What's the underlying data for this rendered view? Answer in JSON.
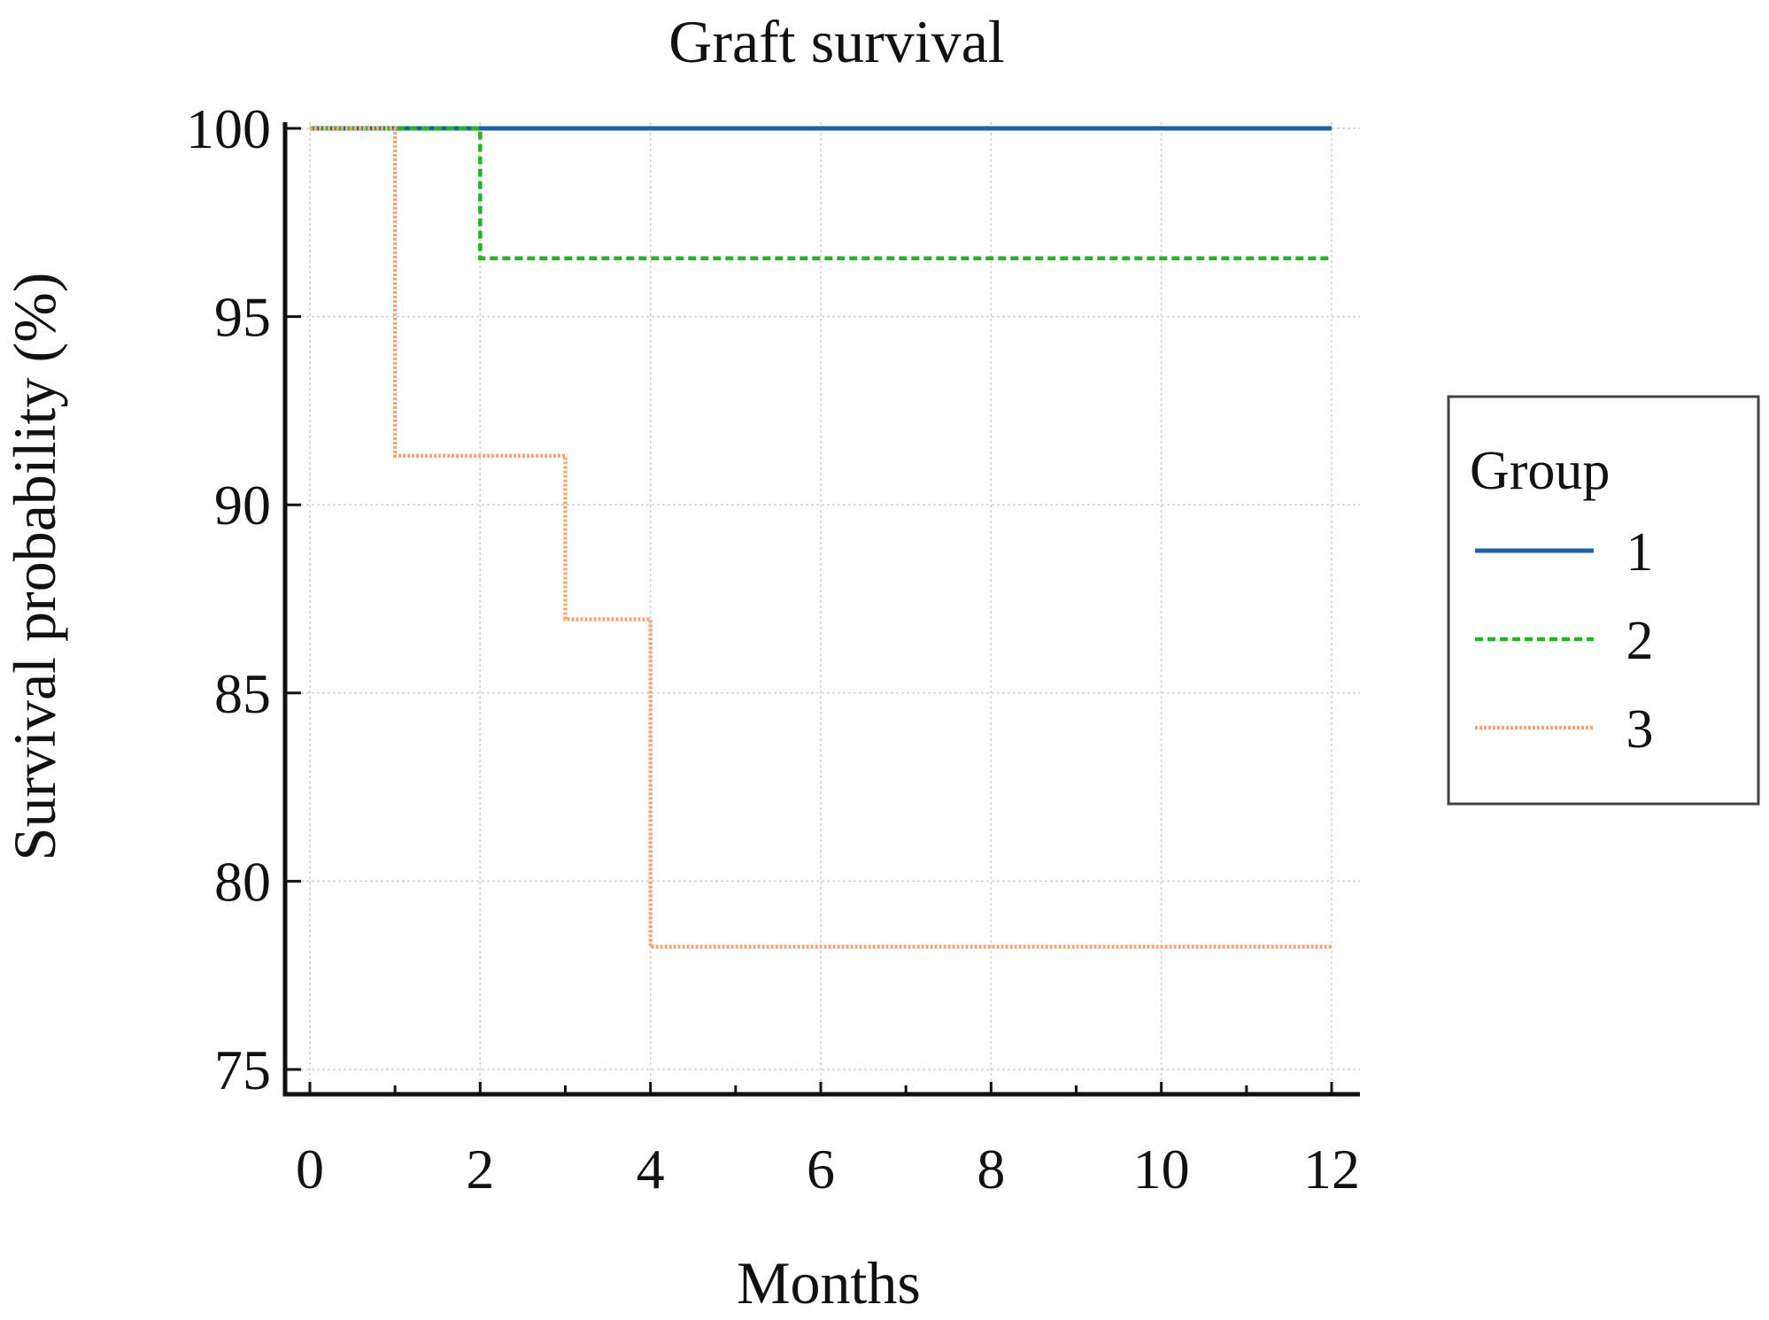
{
  "chart_data": {
    "type": "line",
    "step": true,
    "title": "Graft survival",
    "xlabel": "Months",
    "ylabel": "Survival probability (%)",
    "xlim": [
      0,
      12
    ],
    "ylim": [
      75,
      100
    ],
    "xticks": [
      0,
      2,
      4,
      6,
      8,
      10,
      12
    ],
    "yticks": [
      75,
      80,
      85,
      90,
      95,
      100
    ],
    "grid": true,
    "legend": {
      "title": "Group",
      "placement": "right",
      "entries": [
        "1",
        "2",
        "3"
      ]
    },
    "series": [
      {
        "name": "1",
        "color": "#1f5fa8",
        "style": "solid",
        "x": [
          0,
          12
        ],
        "y": [
          100,
          100
        ]
      },
      {
        "name": "2",
        "color": "#22b422",
        "style": "dashed",
        "x": [
          0,
          2,
          12
        ],
        "y": [
          100,
          96.55,
          96.55
        ]
      },
      {
        "name": "3",
        "color": "#f4a57a",
        "style": "dotted",
        "x": [
          0,
          1,
          3,
          4,
          12
        ],
        "y": [
          100,
          91.3,
          86.96,
          78.26,
          78.26
        ]
      }
    ]
  }
}
